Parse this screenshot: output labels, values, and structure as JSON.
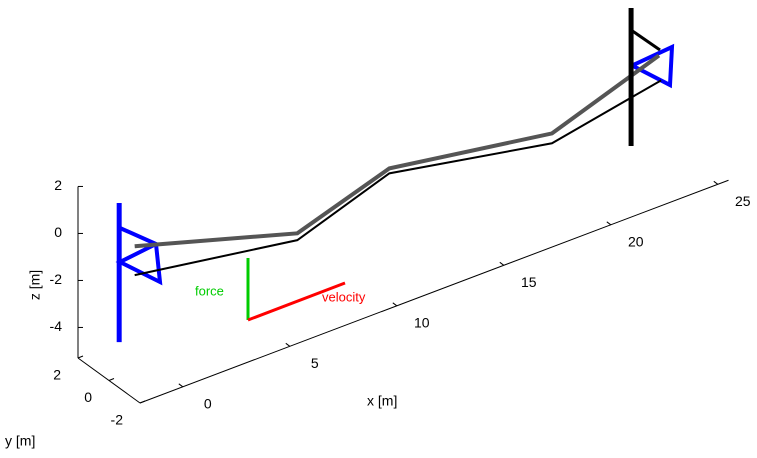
{
  "chart_data": {
    "type": "line3d",
    "xlabel": "x [m]",
    "ylabel": "y [m]",
    "zlabel": "z [m]",
    "xlim": [
      -2,
      25.5
    ],
    "ylim": [
      -2,
      2
    ],
    "zlim": [
      -5.3,
      2
    ],
    "xticks": [
      0,
      5,
      10,
      15,
      20,
      25
    ],
    "yticks": [
      -2,
      0,
      2
    ],
    "zticks": [
      -4,
      -2,
      0,
      2
    ],
    "series": [
      {
        "color": "#555555",
        "width": 4,
        "x": [
          -0.8,
          6.8,
          11.1,
          18.7,
          23.7
        ],
        "y": [
          0,
          0,
          0,
          0,
          0
        ],
        "z": [
          0,
          -2.07,
          -0.79,
          -1.92,
          -0.33
        ]
      },
      {
        "color": "#000000",
        "width": 2,
        "x": [
          -0.8,
          6.8,
          11.1,
          18.7,
          23.8
        ],
        "y": [
          0,
          0,
          0,
          0,
          0
        ],
        "z": [
          -1.23,
          -2.36,
          -1,
          -2.34,
          -1.42
        ]
      },
      {
        "color": "#0000ff",
        "width": 5,
        "x": [
          -0.8,
          -0.8
        ],
        "y": [
          1,
          1
        ],
        "z": [
          -4.56,
          1.36
        ]
      },
      {
        "color": "#000000",
        "width": 5,
        "x": [
          23.7,
          23.7
        ],
        "y": [
          1.8,
          1.8
        ],
        "z": [
          -5.04,
          0.83
        ]
      }
    ],
    "annotations": [
      {
        "text": "force",
        "color": "#00cc00"
      },
      {
        "text": "velocity",
        "color": "#ff0000"
      }
    ]
  }
}
